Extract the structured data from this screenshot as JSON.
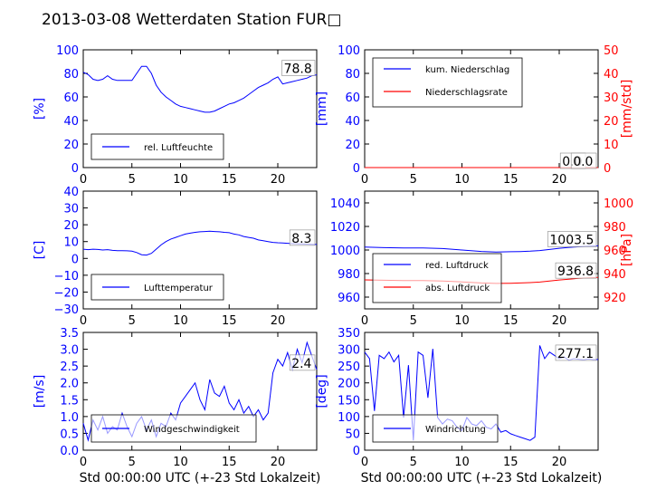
{
  "title": "2013-03-08 Wetterdaten Station FUR□",
  "colors": {
    "primary": "#0000ff",
    "secondary": "#ff0000",
    "frame": "#000000"
  },
  "chart_data": [
    {
      "id": "humidity",
      "type": "line",
      "ylabel": "[%]",
      "xlim": [
        0,
        24
      ],
      "ylim": [
        0,
        100
      ],
      "xticks": [
        "0",
        "5",
        "10",
        "15",
        "20"
      ],
      "yticks": [
        "0",
        "20",
        "40",
        "60",
        "80",
        "100"
      ],
      "legend": [
        "rel. Luftfeuchte"
      ],
      "last_value_label": "78.8",
      "series": [
        {
          "name": "rel. Luftfeuchte",
          "axis": "left",
          "x": [
            0,
            0.5,
            1,
            1.5,
            2,
            2.5,
            3,
            3.5,
            4,
            4.5,
            5,
            5.5,
            6,
            6.5,
            7,
            7.5,
            8,
            8.5,
            9,
            9.5,
            10,
            10.5,
            11,
            11.5,
            12,
            12.5,
            13,
            13.5,
            14,
            14.5,
            15,
            15.5,
            16,
            16.5,
            17,
            17.5,
            18,
            18.5,
            19,
            19.5,
            20,
            20.5,
            21,
            21.5,
            22,
            22.5,
            23,
            23.5,
            24
          ],
          "y": [
            81,
            79,
            75,
            74,
            75,
            78,
            75,
            74,
            74,
            74,
            74,
            80,
            86,
            86,
            80,
            70,
            64,
            60,
            57,
            54,
            52,
            51,
            50,
            49,
            48,
            47,
            47,
            48,
            50,
            52,
            54,
            55,
            57,
            59,
            62,
            65,
            68,
            70,
            72,
            75,
            77,
            71,
            72,
            73,
            74,
            75,
            76,
            78,
            78.8
          ]
        }
      ]
    },
    {
      "id": "precipitation",
      "type": "line",
      "ylabel": "[mm]",
      "y2label": "[mm/std]",
      "xlim": [
        0,
        24
      ],
      "ylim": [
        0,
        100
      ],
      "y2lim": [
        0,
        50
      ],
      "xticks": [
        "0",
        "5",
        "10",
        "15",
        "20"
      ],
      "yticks": [
        "0",
        "20",
        "40",
        "60",
        "80",
        "100"
      ],
      "y2ticks": [
        "0",
        "10",
        "20",
        "30",
        "40",
        "50"
      ],
      "legend": [
        "kum. Niederschlag",
        "Niederschlagsrate"
      ],
      "last_value_labels": [
        "0.0",
        "0.0"
      ],
      "series": [
        {
          "name": "kum. Niederschlag",
          "axis": "left",
          "x": [
            0,
            24
          ],
          "y": [
            0,
            0
          ]
        },
        {
          "name": "Niederschlagsrate",
          "axis": "right",
          "x": [
            0,
            24
          ],
          "y": [
            0,
            0
          ]
        }
      ]
    },
    {
      "id": "temperature",
      "type": "line",
      "ylabel": "[C]",
      "xlim": [
        0,
        24
      ],
      "ylim": [
        -30,
        40
      ],
      "xticks": [
        "0",
        "5",
        "10",
        "15",
        "20"
      ],
      "yticks": [
        "−30",
        "−20",
        "−10",
        "0",
        "10",
        "20",
        "30",
        "40"
      ],
      "legend": [
        "Lufttemperatur"
      ],
      "last_value_label": "8.3",
      "series": [
        {
          "name": "Lufttemperatur",
          "axis": "left",
          "x": [
            0,
            0.5,
            1,
            1.5,
            2,
            2.5,
            3,
            3.5,
            4,
            4.5,
            5,
            5.5,
            6,
            6.5,
            7,
            7.5,
            8,
            8.5,
            9,
            9.5,
            10,
            10.5,
            11,
            11.5,
            12,
            12.5,
            13,
            13.5,
            14,
            14.5,
            15,
            15.5,
            16,
            16.5,
            17,
            17.5,
            18,
            18.5,
            19,
            19.5,
            20,
            20.5,
            21,
            21.5,
            22,
            22.5,
            23,
            23.5,
            24
          ],
          "y": [
            5.5,
            5.2,
            5.5,
            5.3,
            5.0,
            5.2,
            4.8,
            4.6,
            4.6,
            4.5,
            4.3,
            3.5,
            2.2,
            2.0,
            3.0,
            5.5,
            8.0,
            10.0,
            11.5,
            12.5,
            13.5,
            14.5,
            15.0,
            15.5,
            15.8,
            16.0,
            16.2,
            16.0,
            15.8,
            15.5,
            15.3,
            14.5,
            14.0,
            13.0,
            12.5,
            12.0,
            11.0,
            10.5,
            10.0,
            9.5,
            9.3,
            9.2,
            9.0,
            8.8,
            8.7,
            8.6,
            8.5,
            8.4,
            8.3
          ]
        }
      ]
    },
    {
      "id": "pressure",
      "type": "line",
      "ylabel": "",
      "y2label": "[hPa]",
      "xlim": [
        0,
        24
      ],
      "ylim": [
        950,
        1050
      ],
      "y2lim": [
        910,
        1010
      ],
      "xticks": [
        "0",
        "5",
        "10",
        "15",
        "20"
      ],
      "yticks": [
        "960",
        "980",
        "1000",
        "1020",
        "1040"
      ],
      "y2ticks": [
        "920",
        "940",
        "960",
        "980",
        "1000"
      ],
      "legend": [
        "red. Luftdruck",
        "abs. Luftdruck"
      ],
      "last_value_labels": [
        "1003.5",
        "936.8"
      ],
      "series": [
        {
          "name": "red. Luftdruck",
          "axis": "left",
          "x": [
            0,
            2,
            4,
            6,
            8,
            10,
            12,
            13.5,
            15,
            16,
            17,
            18,
            19,
            20,
            21,
            22,
            23,
            24
          ],
          "y": [
            1002.5,
            1002.0,
            1001.8,
            1001.8,
            1001.2,
            1000.0,
            998.8,
            998.3,
            998.5,
            998.7,
            999.0,
            999.5,
            1000.5,
            1001.5,
            1002.2,
            1002.8,
            1003.2,
            1003.5
          ]
        },
        {
          "name": "abs. Luftdruck",
          "axis": "right",
          "x": [
            0,
            2,
            4,
            6,
            8,
            10,
            12,
            13.5,
            15,
            16,
            17,
            18,
            19,
            20,
            21,
            22,
            23,
            24
          ],
          "y": [
            934.6,
            934.3,
            934.1,
            934.0,
            933.6,
            932.9,
            932.0,
            931.6,
            931.8,
            932.0,
            932.3,
            932.8,
            933.6,
            934.5,
            935.2,
            935.9,
            936.4,
            936.8
          ]
        }
      ]
    },
    {
      "id": "wind_speed",
      "type": "line",
      "ylabel": "[m/s]",
      "xlabel": "Std 00:00:00 UTC (+-23 Std Lokalzeit)",
      "xlim": [
        0,
        24
      ],
      "ylim": [
        0,
        3.5
      ],
      "xticks": [
        "0",
        "5",
        "10",
        "15",
        "20"
      ],
      "yticks": [
        "0.0",
        "0.5",
        "1.0",
        "1.5",
        "2.0",
        "2.5",
        "3.0",
        "3.5"
      ],
      "legend": [
        "Windgeschwindigkeit"
      ],
      "last_value_label": "2.4",
      "series": [
        {
          "name": "Windgeschwindigkeit",
          "axis": "left",
          "x": [
            0,
            0.5,
            1,
            1.5,
            2,
            2.5,
            3,
            3.5,
            4,
            4.5,
            5,
            5.5,
            6,
            6.5,
            7,
            7.5,
            8,
            8.5,
            9,
            9.5,
            10,
            10.5,
            11,
            11.5,
            12,
            12.5,
            13,
            13.5,
            14,
            14.5,
            15,
            15.5,
            16,
            16.5,
            17,
            17.5,
            18,
            18.5,
            19,
            19.5,
            20,
            20.5,
            21,
            21.5,
            22,
            22.5,
            23,
            23.5,
            24
          ],
          "y": [
            0.8,
            0.3,
            0.9,
            0.6,
            1.0,
            0.5,
            0.7,
            0.6,
            1.1,
            0.7,
            0.4,
            0.8,
            1.0,
            0.6,
            0.9,
            0.4,
            0.8,
            0.7,
            1.1,
            0.9,
            1.4,
            1.6,
            1.8,
            2.0,
            1.5,
            1.2,
            2.1,
            1.7,
            1.6,
            1.9,
            1.4,
            1.2,
            1.5,
            1.1,
            1.3,
            1.0,
            1.2,
            0.9,
            1.1,
            2.3,
            2.7,
            2.5,
            2.9,
            2.4,
            3.0,
            2.6,
            3.2,
            2.8,
            2.4
          ]
        }
      ]
    },
    {
      "id": "wind_direction",
      "type": "line",
      "ylabel": "[deg]",
      "xlabel": "Std 00:00:00 UTC (+-23 Std Lokalzeit)",
      "xlim": [
        0,
        24
      ],
      "ylim": [
        0,
        360
      ],
      "xticks": [
        "0",
        "5",
        "10",
        "15",
        "20"
      ],
      "yticks": [
        "0",
        "50",
        "100",
        "150",
        "200",
        "250",
        "300",
        "350"
      ],
      "legend": [
        "Windrichtung"
      ],
      "last_value_label": "277.1",
      "series": [
        {
          "name": "Windrichtung",
          "axis": "left",
          "x": [
            0,
            0.5,
            1,
            1.5,
            2,
            2.5,
            3,
            3.5,
            4,
            4.5,
            5,
            5.5,
            6,
            6.5,
            7,
            7.5,
            8,
            8.5,
            9,
            9.5,
            10,
            10.5,
            11,
            11.5,
            12,
            12.5,
            13,
            13.5,
            14,
            14.5,
            15,
            15.5,
            16,
            16.5,
            17,
            17.5,
            18,
            18.5,
            19,
            19.5,
            20,
            20.5,
            21,
            21.5,
            22,
            22.5,
            23,
            23.5,
            24
          ],
          "y": [
            300,
            280,
            120,
            290,
            280,
            300,
            270,
            290,
            100,
            260,
            30,
            300,
            290,
            160,
            310,
            100,
            80,
            95,
            90,
            70,
            60,
            100,
            80,
            75,
            90,
            70,
            65,
            80,
            55,
            60,
            50,
            45,
            40,
            35,
            30,
            40,
            320,
            280,
            300,
            290,
            280,
            285,
            275,
            280,
            278,
            276,
            279,
            277,
            277.1
          ]
        }
      ]
    }
  ]
}
